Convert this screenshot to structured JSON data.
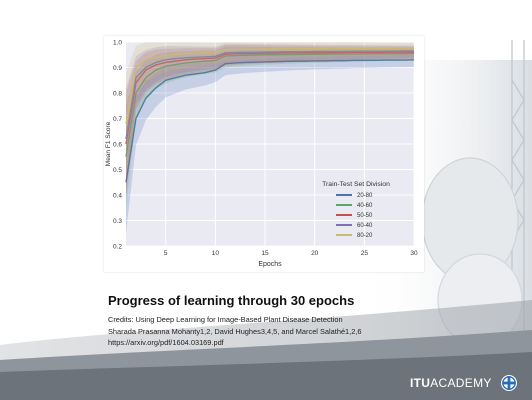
{
  "caption": {
    "title": "Progress of learning through 30 epochs",
    "credits": "Credits: Using Deep Learning for Image-Based Plant Disease Detection",
    "authors": "Sharada Prasanna Mohanty1,2, David Hughes3,4,5, and Marcel Salathé1,2,6",
    "url": "https://arxiv.org/pdf/1604.03169.pdf"
  },
  "brand": {
    "name_bold": "ITU",
    "name_light": "ACADEMY",
    "logo_icon": "itu-globe-icon"
  },
  "chart_data": {
    "type": "line",
    "title": "",
    "xlabel": "Epochs",
    "ylabel": "Mean F1 Score",
    "xlim": [
      1,
      30
    ],
    "ylim": [
      0.2,
      1.0
    ],
    "xticks": [
      5,
      10,
      15,
      20,
      25,
      30
    ],
    "yticks": [
      0.2,
      0.3,
      0.4,
      0.5,
      0.6,
      0.7,
      0.8,
      0.9,
      1.0
    ],
    "grid": true,
    "legend": {
      "title": "Train-Test Set Division",
      "placement": "lower-right"
    },
    "x": [
      1,
      2,
      3,
      4,
      5,
      6,
      7,
      8,
      9,
      10,
      11,
      12,
      13,
      14,
      15,
      16,
      17,
      18,
      19,
      20,
      21,
      22,
      23,
      24,
      25,
      26,
      27,
      28,
      29,
      30
    ],
    "series": [
      {
        "name": "20-80",
        "color": "#4c72b0",
        "values": [
          0.45,
          0.7,
          0.78,
          0.82,
          0.85,
          0.86,
          0.87,
          0.875,
          0.88,
          0.89,
          0.915,
          0.918,
          0.92,
          0.921,
          0.922,
          0.923,
          0.924,
          0.925,
          0.925,
          0.926,
          0.926,
          0.927,
          0.927,
          0.928,
          0.928,
          0.928,
          0.929,
          0.929,
          0.929,
          0.93
        ]
      },
      {
        "name": "40-60",
        "color": "#55a868",
        "values": [
          0.55,
          0.8,
          0.86,
          0.89,
          0.905,
          0.912,
          0.918,
          0.922,
          0.925,
          0.928,
          0.945,
          0.947,
          0.948,
          0.949,
          0.95,
          0.95,
          0.951,
          0.951,
          0.952,
          0.952,
          0.952,
          0.953,
          0.953,
          0.953,
          0.953,
          0.954,
          0.954,
          0.954,
          0.954,
          0.955
        ]
      },
      {
        "name": "50-50",
        "color": "#c44e52",
        "values": [
          0.6,
          0.84,
          0.89,
          0.91,
          0.92,
          0.925,
          0.93,
          0.933,
          0.935,
          0.937,
          0.952,
          0.954,
          0.955,
          0.955,
          0.956,
          0.956,
          0.957,
          0.957,
          0.958,
          0.958,
          0.958,
          0.958,
          0.959,
          0.959,
          0.959,
          0.959,
          0.96,
          0.96,
          0.96,
          0.96
        ]
      },
      {
        "name": "60-40",
        "color": "#8172b2",
        "values": [
          0.62,
          0.86,
          0.9,
          0.92,
          0.93,
          0.935,
          0.938,
          0.94,
          0.942,
          0.944,
          0.958,
          0.959,
          0.96,
          0.96,
          0.961,
          0.961,
          0.962,
          0.962,
          0.962,
          0.963,
          0.963,
          0.963,
          0.963,
          0.964,
          0.964,
          0.964,
          0.964,
          0.964,
          0.965,
          0.965
        ]
      },
      {
        "name": "80-20",
        "color": "#ccb974",
        "values": [
          0.68,
          0.9,
          0.93,
          0.94,
          0.948,
          0.952,
          0.955,
          0.957,
          0.958,
          0.96,
          0.97,
          0.971,
          0.972,
          0.972,
          0.973,
          0.973,
          0.973,
          0.974,
          0.974,
          0.974,
          0.974,
          0.975,
          0.975,
          0.975,
          0.975,
          0.975,
          0.975,
          0.976,
          0.976,
          0.976
        ]
      }
    ]
  }
}
